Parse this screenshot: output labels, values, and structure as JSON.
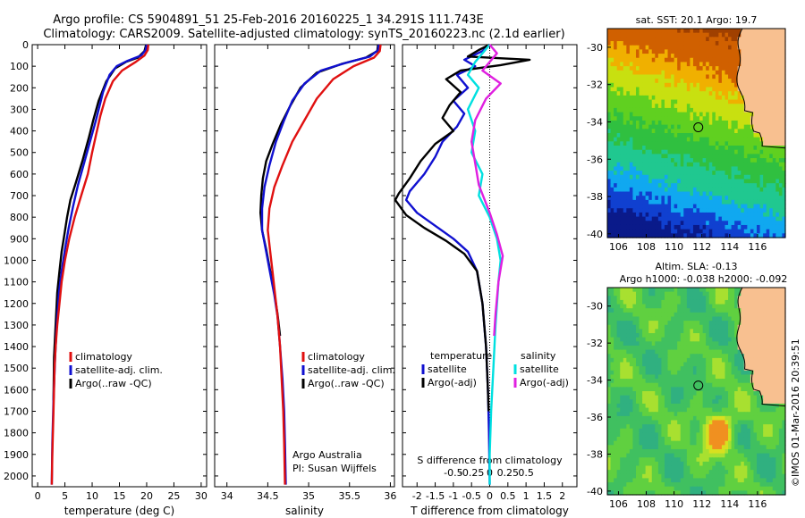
{
  "header": {
    "line1": "Argo profile: CS 5904891_51 25-Feb-2016 20160225_1 34.291S 111.743E",
    "line2": "Climatology: CARS2009. Satellite-adjusted climatology: synTS_20160223.nc (2.1d earlier)"
  },
  "colors": {
    "climatology": "#e01010",
    "satellite": "#1010d0",
    "argo": "#000000",
    "salinity_satellite": "#00e0e0",
    "salinity_argo": "#e020e0",
    "land": "#f8c090"
  },
  "chart_data": [
    {
      "type": "line",
      "xlabel": "temperature (deg C)",
      "ylabel": "",
      "xlim": [
        -1,
        31
      ],
      "ylim": [
        2050,
        0
      ],
      "x_ticks": [
        "0",
        "5",
        "10",
        "15",
        "20",
        "25",
        "30"
      ],
      "y_ticks": [
        "0",
        "100",
        "200",
        "300",
        "400",
        "500",
        "600",
        "700",
        "800",
        "900",
        "1000",
        "1100",
        "1200",
        "1300",
        "1400",
        "1500",
        "1600",
        "1700",
        "1800",
        "1900",
        "2000"
      ],
      "legend": [
        "climatology",
        "satellite-adj. clim.",
        "Argo(..raw -QC)"
      ],
      "series": [
        {
          "name": "climatology",
          "color": "#e01010",
          "points": [
            [
              20.3,
              0
            ],
            [
              20.2,
              25
            ],
            [
              19.6,
              50
            ],
            [
              18.0,
              80
            ],
            [
              15.5,
              120
            ],
            [
              13.8,
              170
            ],
            [
              12.4,
              250
            ],
            [
              11.5,
              330
            ],
            [
              10.7,
              420
            ],
            [
              10.0,
              500
            ],
            [
              9.2,
              600
            ],
            [
              8.0,
              700
            ],
            [
              6.8,
              800
            ],
            [
              5.8,
              900
            ],
            [
              5.0,
              1000
            ],
            [
              4.4,
              1100
            ],
            [
              4.0,
              1200
            ],
            [
              3.6,
              1300
            ],
            [
              3.3,
              1400
            ],
            [
              3.1,
              1500
            ],
            [
              2.9,
              1700
            ],
            [
              2.7,
              1900
            ],
            [
              2.6,
              2040
            ]
          ]
        },
        {
          "name": "satellite-adj. clim.",
          "color": "#1010d0",
          "points": [
            [
              20.0,
              0
            ],
            [
              19.8,
              25
            ],
            [
              19.0,
              50
            ],
            [
              16.5,
              75
            ],
            [
              14.5,
              100
            ],
            [
              13.2,
              140
            ],
            [
              12.0,
              220
            ],
            [
              10.7,
              350
            ],
            [
              9.6,
              450
            ],
            [
              8.4,
              560
            ],
            [
              7.4,
              650
            ],
            [
              6.5,
              750
            ],
            [
              5.7,
              850
            ],
            [
              5.0,
              950
            ],
            [
              4.4,
              1050
            ],
            [
              3.9,
              1150
            ],
            [
              3.5,
              1300
            ],
            [
              3.2,
              1450
            ],
            [
              2.9,
              1650
            ],
            [
              2.7,
              1850
            ],
            [
              2.6,
              2040
            ]
          ]
        },
        {
          "name": "Argo(..raw -QC)",
          "color": "#000000",
          "points": [
            [
              19.9,
              0
            ],
            [
              19.6,
              30
            ],
            [
              18.4,
              60
            ],
            [
              16.2,
              80
            ],
            [
              14.2,
              110
            ],
            [
              12.6,
              170
            ],
            [
              11.2,
              260
            ],
            [
              10.2,
              350
            ],
            [
              9.4,
              430
            ],
            [
              8.2,
              540
            ],
            [
              7.0,
              640
            ],
            [
              6.0,
              720
            ],
            [
              5.4,
              800
            ],
            [
              4.9,
              880
            ],
            [
              4.4,
              960
            ],
            [
              4.0,
              1050
            ],
            [
              3.6,
              1150
            ],
            [
              3.3,
              1300
            ],
            [
              3.0,
              1450
            ],
            [
              2.9,
              1650
            ]
          ]
        }
      ]
    },
    {
      "type": "line",
      "xlabel": "salinity",
      "ylabel": "",
      "xlim": [
        33.85,
        36.05
      ],
      "ylim": [
        2050,
        0
      ],
      "x_ticks": [
        "34",
        "34.5",
        "35",
        "35.5",
        "36"
      ],
      "legend": [
        "climatology",
        "satellite-adj. clim.",
        "Argo(..raw -QC)"
      ],
      "annotations": [
        "Argo Australia",
        "PI: Susan Wijffels"
      ],
      "series": [
        {
          "name": "climatology",
          "color": "#e01010",
          "points": [
            [
              35.88,
              0
            ],
            [
              35.87,
              30
            ],
            [
              35.8,
              60
            ],
            [
              35.55,
              100
            ],
            [
              35.3,
              160
            ],
            [
              35.1,
              250
            ],
            [
              34.95,
              350
            ],
            [
              34.8,
              450
            ],
            [
              34.68,
              560
            ],
            [
              34.58,
              660
            ],
            [
              34.52,
              760
            ],
            [
              34.5,
              860
            ],
            [
              34.53,
              960
            ],
            [
              34.56,
              1060
            ],
            [
              34.59,
              1160
            ],
            [
              34.62,
              1260
            ],
            [
              34.65,
              1400
            ],
            [
              34.67,
              1550
            ],
            [
              34.69,
              1700
            ],
            [
              34.7,
              1850
            ],
            [
              34.71,
              2040
            ]
          ]
        },
        {
          "name": "satellite-adj. clim.",
          "color": "#1010d0",
          "points": [
            [
              35.86,
              0
            ],
            [
              35.85,
              25
            ],
            [
              35.75,
              55
            ],
            [
              35.45,
              85
            ],
            [
              35.15,
              120
            ],
            [
              34.95,
              180
            ],
            [
              34.8,
              260
            ],
            [
              34.7,
              350
            ],
            [
              34.6,
              450
            ],
            [
              34.52,
              560
            ],
            [
              34.46,
              660
            ],
            [
              34.43,
              760
            ],
            [
              34.43,
              860
            ],
            [
              34.48,
              960
            ],
            [
              34.53,
              1060
            ],
            [
              34.58,
              1160
            ],
            [
              34.62,
              1260
            ],
            [
              34.65,
              1400
            ],
            [
              34.68,
              1550
            ],
            [
              34.7,
              1700
            ],
            [
              34.71,
              1850
            ],
            [
              34.72,
              2040
            ]
          ]
        },
        {
          "name": "Argo(..raw -QC)",
          "color": "#000000",
          "points": [
            [
              35.85,
              0
            ],
            [
              35.84,
              30
            ],
            [
              35.7,
              60
            ],
            [
              35.4,
              90
            ],
            [
              35.1,
              130
            ],
            [
              34.9,
              200
            ],
            [
              34.78,
              280
            ],
            [
              34.66,
              370
            ],
            [
              34.56,
              460
            ],
            [
              34.48,
              540
            ],
            [
              34.44,
              620
            ],
            [
              34.42,
              700
            ],
            [
              34.41,
              780
            ],
            [
              34.43,
              860
            ],
            [
              34.48,
              950
            ],
            [
              34.53,
              1050
            ],
            [
              34.58,
              1150
            ],
            [
              34.62,
              1250
            ],
            [
              34.65,
              1350
            ]
          ]
        }
      ]
    },
    {
      "type": "line",
      "xlabel": "T difference from climatology",
      "x_ticks": [
        "-2",
        "-1.5",
        "-1",
        "-0.5",
        "0",
        "0.5",
        "1",
        "1.5",
        "2"
      ],
      "xlim": [
        -2.4,
        2.4
      ],
      "secondary_xlabel": "S difference from climatology",
      "secondary_x_ticks": [
        "-0.5",
        "-0.25",
        "0",
        "0.25",
        "0.5"
      ],
      "ylim": [
        2050,
        0
      ],
      "legend_temperature_title": "temperature",
      "legend_salinity_title": "salinity",
      "legend": [
        "satellite",
        "Argo(-adj)",
        "satellite",
        "Argo(-adj)"
      ],
      "series": [
        {
          "name": "satellite",
          "group": "temperature",
          "color": "#1010d0",
          "points": [
            [
              0,
              0
            ],
            [
              -0.2,
              30
            ],
            [
              -0.7,
              70
            ],
            [
              -0.4,
              100
            ],
            [
              -0.9,
              140
            ],
            [
              -0.6,
              200
            ],
            [
              -1.0,
              260
            ],
            [
              -0.7,
              320
            ],
            [
              -0.9,
              380
            ],
            [
              -1.3,
              450
            ],
            [
              -1.5,
              520
            ],
            [
              -1.8,
              600
            ],
            [
              -2.2,
              680
            ],
            [
              -2.3,
              720
            ],
            [
              -2.0,
              780
            ],
            [
              -1.5,
              840
            ],
            [
              -1.0,
              900
            ],
            [
              -0.6,
              960
            ],
            [
              -0.35,
              1050
            ],
            [
              -0.2,
              1200
            ],
            [
              -0.1,
              1400
            ],
            [
              -0.05,
              1600
            ],
            [
              -0.02,
              1800
            ],
            [
              0,
              2040
            ]
          ]
        },
        {
          "name": "Argo(-adj)",
          "group": "temperature",
          "color": "#000000",
          "points": [
            [
              0,
              0
            ],
            [
              -0.3,
              25
            ],
            [
              -0.6,
              55
            ],
            [
              1.1,
              70
            ],
            [
              0.3,
              95
            ],
            [
              -0.8,
              120
            ],
            [
              -1.2,
              160
            ],
            [
              -0.8,
              220
            ],
            [
              -1.1,
              280
            ],
            [
              -1.3,
              340
            ],
            [
              -1.0,
              400
            ],
            [
              -1.5,
              460
            ],
            [
              -1.9,
              540
            ],
            [
              -2.2,
              620
            ],
            [
              -2.5,
              690
            ],
            [
              -2.6,
              720
            ],
            [
              -2.3,
              790
            ],
            [
              -1.8,
              850
            ],
            [
              -1.2,
              910
            ],
            [
              -0.7,
              970
            ],
            [
              -0.35,
              1050
            ],
            [
              -0.2,
              1200
            ],
            [
              -0.1,
              1400
            ],
            [
              -0.05,
              1600
            ],
            [
              -0.03,
              1700
            ]
          ]
        },
        {
          "name": "satellite",
          "group": "salinity",
          "color": "#00e0e0",
          "points": [
            [
              0,
              0
            ],
            [
              -0.1,
              40
            ],
            [
              -0.2,
              80
            ],
            [
              -0.3,
              140
            ],
            [
              -0.15,
              200
            ],
            [
              -0.3,
              300
            ],
            [
              -0.2,
              400
            ],
            [
              -0.25,
              500
            ],
            [
              -0.1,
              600
            ],
            [
              -0.15,
              700
            ],
            [
              0.0,
              800
            ],
            [
              0.1,
              900
            ],
            [
              0.15,
              1000
            ],
            [
              0.12,
              1100
            ],
            [
              0.08,
              1300
            ],
            [
              0.05,
              1500
            ],
            [
              0.02,
              1700
            ],
            [
              0.0,
              1900
            ],
            [
              0.0,
              2040
            ]
          ]
        },
        {
          "name": "Argo(-adj)",
          "group": "salinity",
          "color": "#e020e0",
          "points": [
            [
              0.0,
              0
            ],
            [
              0.1,
              40
            ],
            [
              0.0,
              80
            ],
            [
              -0.1,
              120
            ],
            [
              0.15,
              180
            ],
            [
              -0.05,
              250
            ],
            [
              -0.2,
              350
            ],
            [
              -0.25,
              450
            ],
            [
              -0.2,
              550
            ],
            [
              -0.15,
              650
            ],
            [
              0.0,
              780
            ],
            [
              0.1,
              880
            ],
            [
              0.18,
              980
            ],
            [
              0.12,
              1100
            ],
            [
              0.08,
              1250
            ],
            [
              0.06,
              1350
            ]
          ]
        }
      ]
    },
    {
      "type": "heatmap",
      "title": "sat. SST: 20.1  Argo: 19.7",
      "x_ticks": [
        "106",
        "108",
        "110",
        "112",
        "114",
        "116"
      ],
      "y_ticks": [
        "-30",
        "-32",
        "-34",
        "-36",
        "-38",
        "-40"
      ],
      "xlim": [
        105.2,
        118
      ],
      "ylim": [
        -29,
        -40.2
      ],
      "profile_location": [
        111.743,
        -34.291
      ]
    },
    {
      "type": "heatmap",
      "title_line1": "Altim. SLA: -0.13",
      "title_line2": "Argo h1000: -0.038 h2000: -0.092",
      "x_ticks": [
        "106",
        "108",
        "110",
        "112",
        "114",
        "116"
      ],
      "y_ticks": [
        "-30",
        "-32",
        "-34",
        "-36",
        "-38",
        "-40"
      ],
      "xlim": [
        105.2,
        118
      ],
      "ylim": [
        -29,
        -40.2
      ],
      "profile_location": [
        111.743,
        -34.291
      ]
    }
  ],
  "credit": "©IMOS 01-Mar-2016 20:39:51"
}
